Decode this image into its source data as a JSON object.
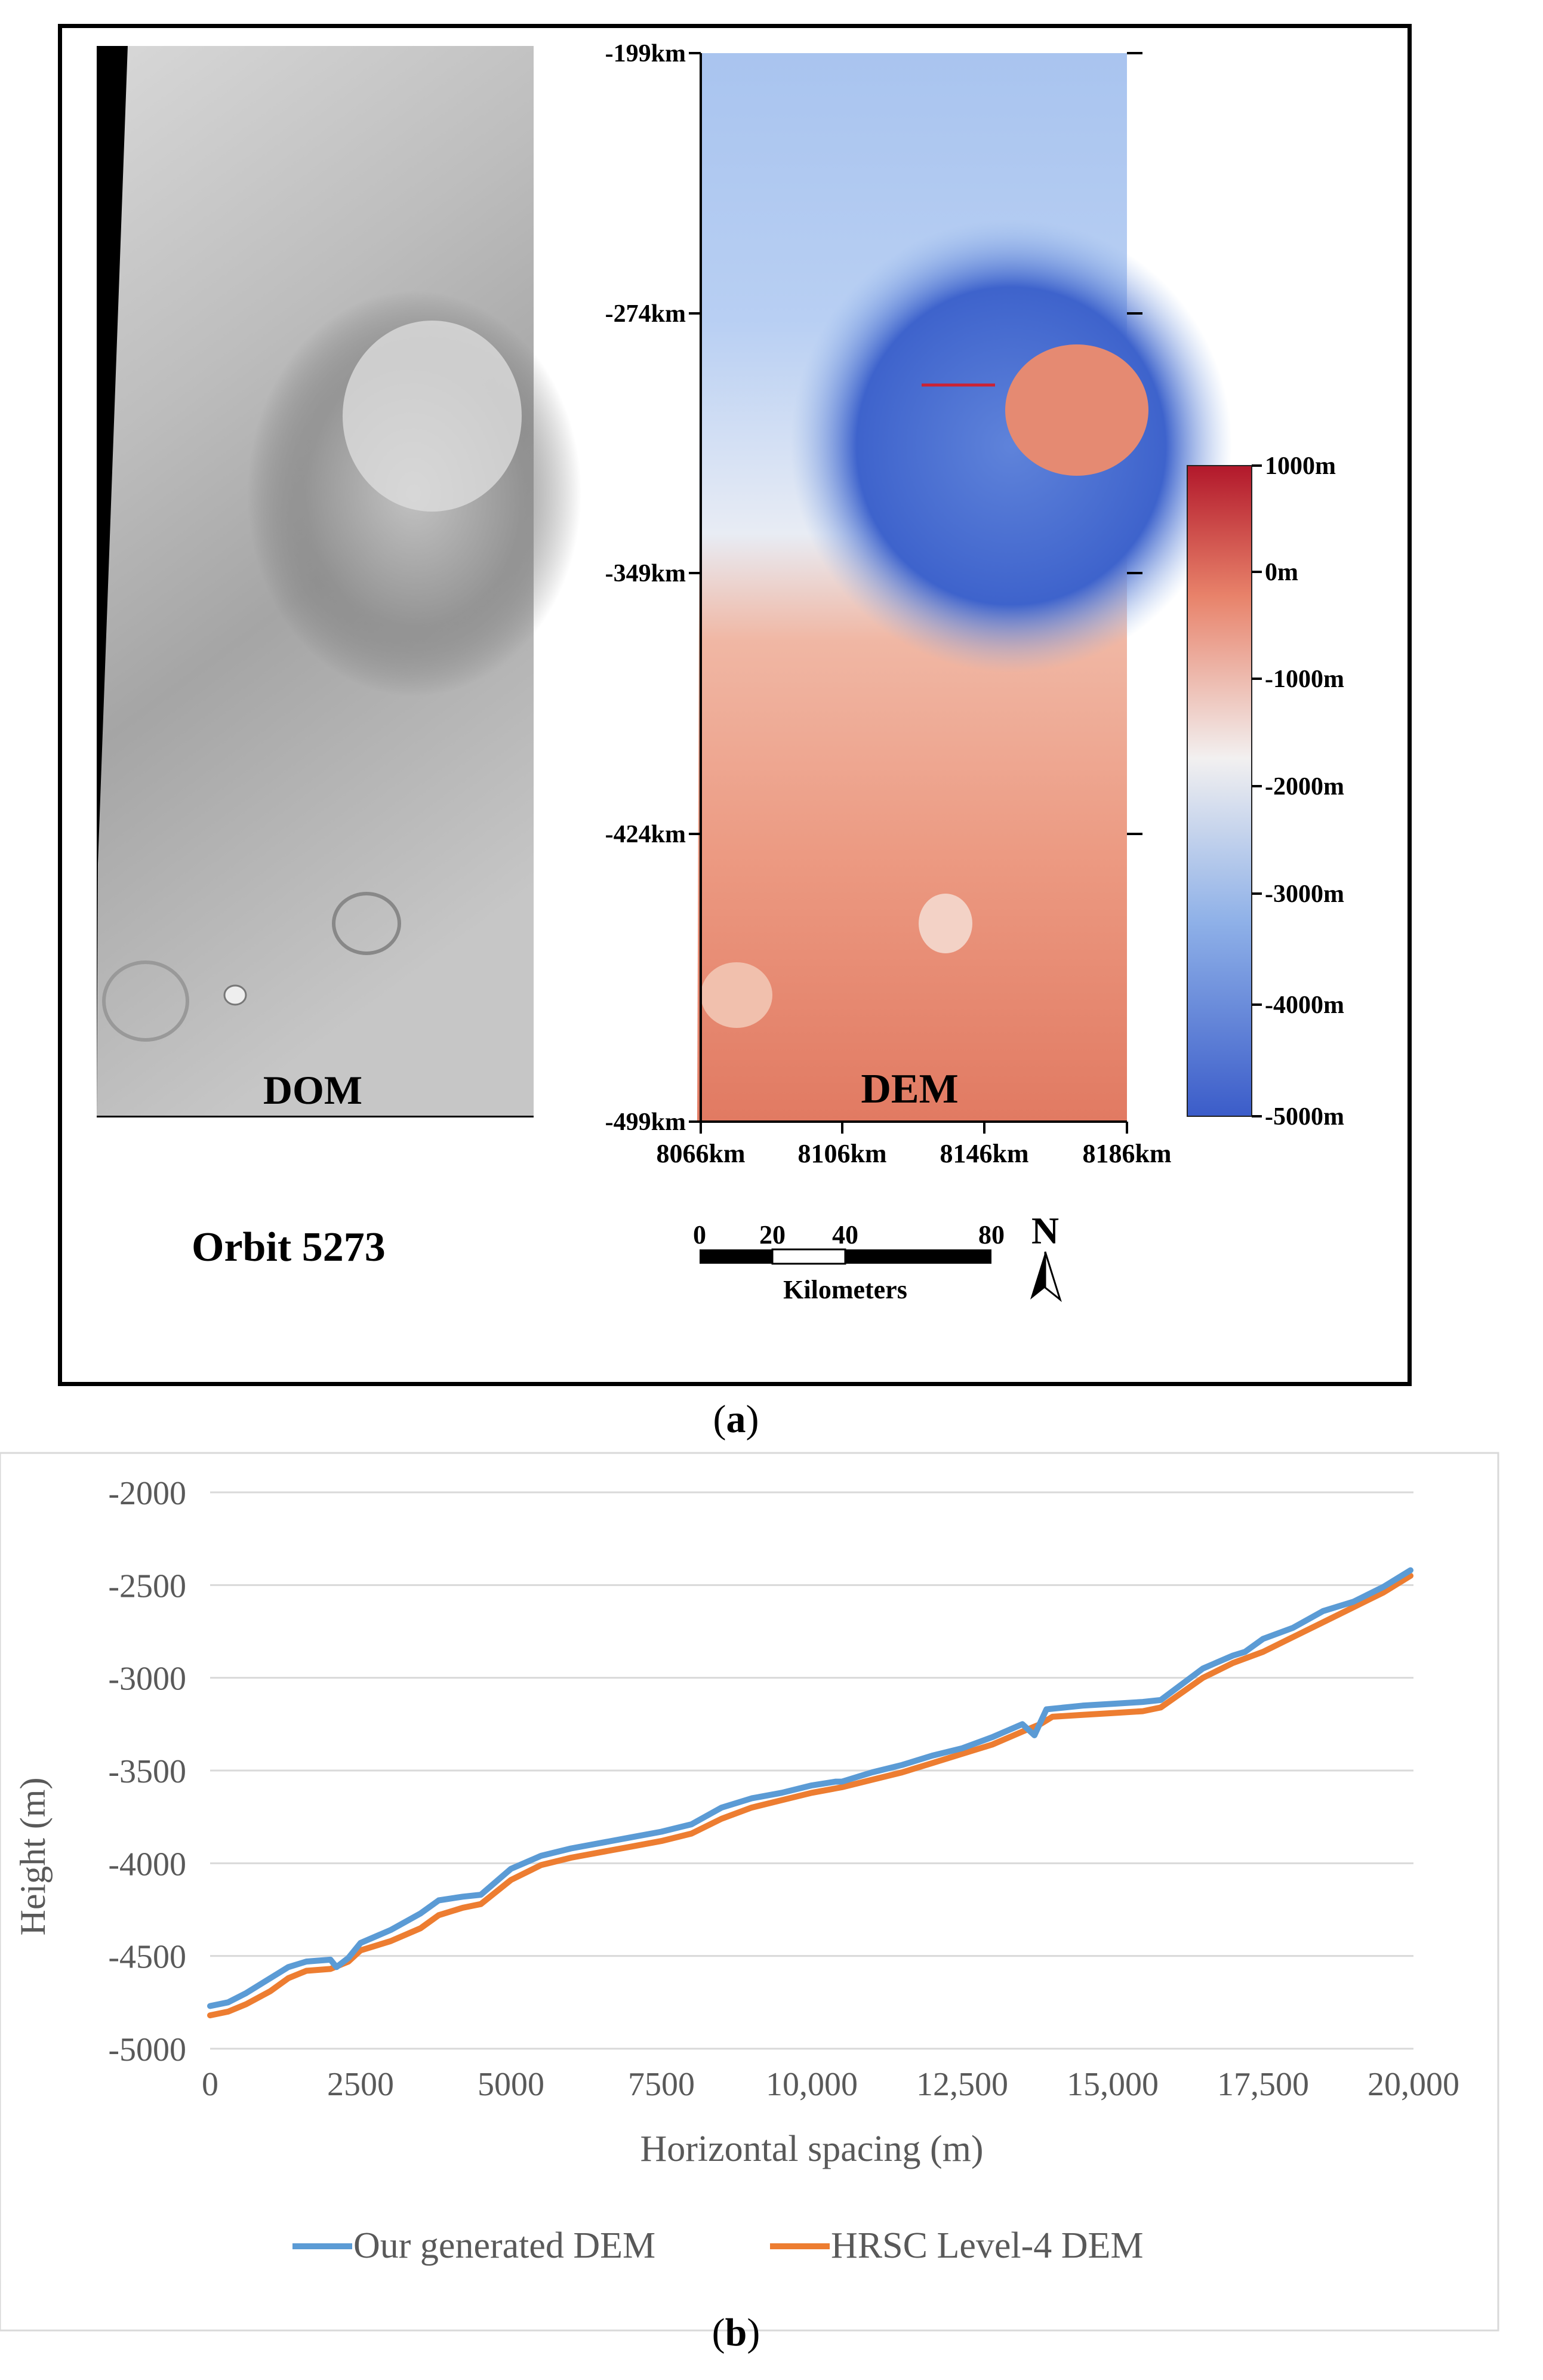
{
  "panel_a": {
    "caption_label": "a",
    "dom_label": "DOM",
    "dem_label": "DEM",
    "orbit_label": "Orbit 5273",
    "y_ticks": [
      "-199km",
      "-274km",
      "-349km",
      "-424km",
      "-499km"
    ],
    "x_ticks": [
      "8066km",
      "8106km",
      "8146km",
      "8186km"
    ],
    "colorbar_ticks": [
      "1000m",
      "0m",
      "-1000m",
      "-2000m",
      "-3000m",
      "-4000m",
      "-5000m"
    ],
    "colorbar_colors": {
      "top": "#b2182b",
      "upper": "#e8826a",
      "middle": "#f2f0f0",
      "lower": "#8fb1e8",
      "bottom": "#3b5cc9"
    },
    "scale_bar": {
      "ticks": [
        "0",
        "20",
        "40",
        "80"
      ],
      "units_label": "Kilometers"
    },
    "north_label": "N"
  },
  "panel_b": {
    "caption_label": "b",
    "chart_data": {
      "type": "line",
      "title": "",
      "xlabel": "Horizontal spacing (m)",
      "ylabel": "Height (m)",
      "xlim": [
        0,
        20000
      ],
      "ylim": [
        -5000,
        -2000
      ],
      "x_tick_labels": [
        "0",
        "2500",
        "5000",
        "7500",
        "10,000",
        "12,500",
        "15,000",
        "17,500",
        "20,000"
      ],
      "y_tick_labels": [
        "-2000",
        "-2500",
        "-3000",
        "-3500",
        "-4000",
        "-4500",
        "-5000"
      ],
      "x_ticks": [
        0,
        2500,
        5000,
        7500,
        10000,
        12500,
        15000,
        17500,
        20000
      ],
      "y_ticks": [
        -2000,
        -2500,
        -3000,
        -3500,
        -4000,
        -4500,
        -5000
      ],
      "grid": true,
      "legend_position": "bottom",
      "series": [
        {
          "name": "Our generated DEM",
          "color": "#5b9bd5",
          "x": [
            0,
            300,
            600,
            1000,
            1300,
            1600,
            2000,
            2100,
            2300,
            2500,
            3000,
            3500,
            3800,
            4200,
            4500,
            5000,
            5500,
            6000,
            6500,
            7000,
            7500,
            8000,
            8500,
            9000,
            9500,
            10000,
            10400,
            10500,
            11000,
            11500,
            12000,
            12500,
            13000,
            13500,
            13700,
            13900,
            14500,
            15000,
            15500,
            15800,
            16500,
            17000,
            17200,
            17500,
            18000,
            18500,
            19000,
            19500,
            19950
          ],
          "y": [
            -4770,
            -4750,
            -4700,
            -4620,
            -4560,
            -4530,
            -4520,
            -4560,
            -4510,
            -4430,
            -4360,
            -4270,
            -4200,
            -4180,
            -4170,
            -4030,
            -3960,
            -3920,
            -3890,
            -3860,
            -3830,
            -3790,
            -3700,
            -3650,
            -3620,
            -3580,
            -3560,
            -3560,
            -3510,
            -3470,
            -3420,
            -3380,
            -3320,
            -3250,
            -3310,
            -3170,
            -3150,
            -3140,
            -3130,
            -3120,
            -2950,
            -2880,
            -2860,
            -2790,
            -2730,
            -2640,
            -2590,
            -2510,
            -2420
          ]
        },
        {
          "name": "HRSC Level-4 DEM",
          "color": "#ed7d31",
          "x": [
            0,
            300,
            600,
            1000,
            1300,
            1600,
            2000,
            2300,
            2500,
            3000,
            3500,
            3800,
            4200,
            4500,
            5000,
            5500,
            6000,
            6500,
            7000,
            7500,
            8000,
            8500,
            9000,
            9500,
            10000,
            10500,
            11000,
            11500,
            12000,
            12500,
            13000,
            13500,
            13800,
            14000,
            14500,
            15000,
            15500,
            15800,
            16500,
            17000,
            17500,
            18000,
            18500,
            19000,
            19500,
            19950
          ],
          "y": [
            -4820,
            -4800,
            -4760,
            -4690,
            -4620,
            -4580,
            -4570,
            -4530,
            -4470,
            -4420,
            -4350,
            -4280,
            -4240,
            -4220,
            -4090,
            -4010,
            -3970,
            -3940,
            -3910,
            -3880,
            -3840,
            -3760,
            -3700,
            -3660,
            -3620,
            -3590,
            -3550,
            -3510,
            -3460,
            -3410,
            -3360,
            -3290,
            -3250,
            -3210,
            -3200,
            -3190,
            -3180,
            -3160,
            -3000,
            -2920,
            -2860,
            -2780,
            -2700,
            -2620,
            -2540,
            -2450
          ]
        }
      ]
    }
  }
}
